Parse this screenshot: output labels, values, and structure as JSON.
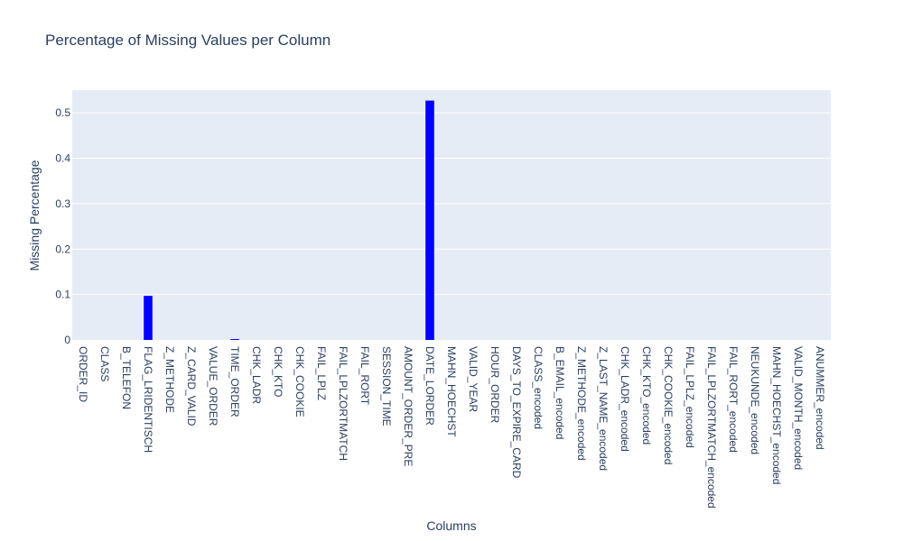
{
  "chart_data": {
    "type": "bar",
    "title": "Percentage of Missing Values per Column",
    "xlabel": "Columns",
    "ylabel": "Missing Percentage",
    "ylim": [
      0,
      0.55
    ],
    "yticks": [
      0,
      0.1,
      0.2,
      0.3,
      0.4,
      0.5
    ],
    "ytick_labels": [
      "0",
      "0.1",
      "0.2",
      "0.3",
      "0.4",
      "0.5"
    ],
    "grid": true,
    "legend": false,
    "bar_color": "#0000ff",
    "plot_bg": "#e5ecf6",
    "categories": [
      "ORDER_ID",
      "CLASS",
      "B_TELEFON",
      "FLAG_LRIDENTISCH",
      "Z_METHODE",
      "Z_CARD_VALID",
      "VALUE_ORDER",
      "TIME_ORDER",
      "CHK_LADR",
      "CHK_KTO",
      "CHK_COOKIE",
      "FAIL_LPLZ",
      "FAIL_LPLZORTMATCH",
      "FAIL_RORT",
      "SESSION_TIME",
      "AMOUNT_ORDER_PRE",
      "DATE_LORDER",
      "MAHN_HOECHST",
      "VALID_YEAR",
      "HOUR_ORDER",
      "DAYS_TO_EXPIRE_CARD",
      "CLASS_encoded",
      "B_EMAIL_encoded",
      "Z_METHODE_encoded",
      "Z_LAST_NAME_encoded",
      "CHK_LADR_encoded",
      "CHK_KTO_encoded",
      "CHK_COOKIE_encoded",
      "FAIL_LPLZ_encoded",
      "FAIL_LPLZORTMATCH_encoded",
      "FAIL_RORT_encoded",
      "NEUKUNDE_encoded",
      "MAHN_HOECHST_encoded",
      "VALID_MONTH_encoded",
      "ANUMMER_encoded"
    ],
    "values": [
      0,
      0,
      0,
      0.097,
      0,
      0,
      0,
      0.002,
      0,
      0,
      0,
      0,
      0,
      0,
      0,
      0,
      0.527,
      0,
      0,
      0,
      0,
      0,
      0,
      0,
      0,
      0,
      0,
      0,
      0,
      0,
      0,
      0,
      0,
      0,
      0
    ]
  }
}
